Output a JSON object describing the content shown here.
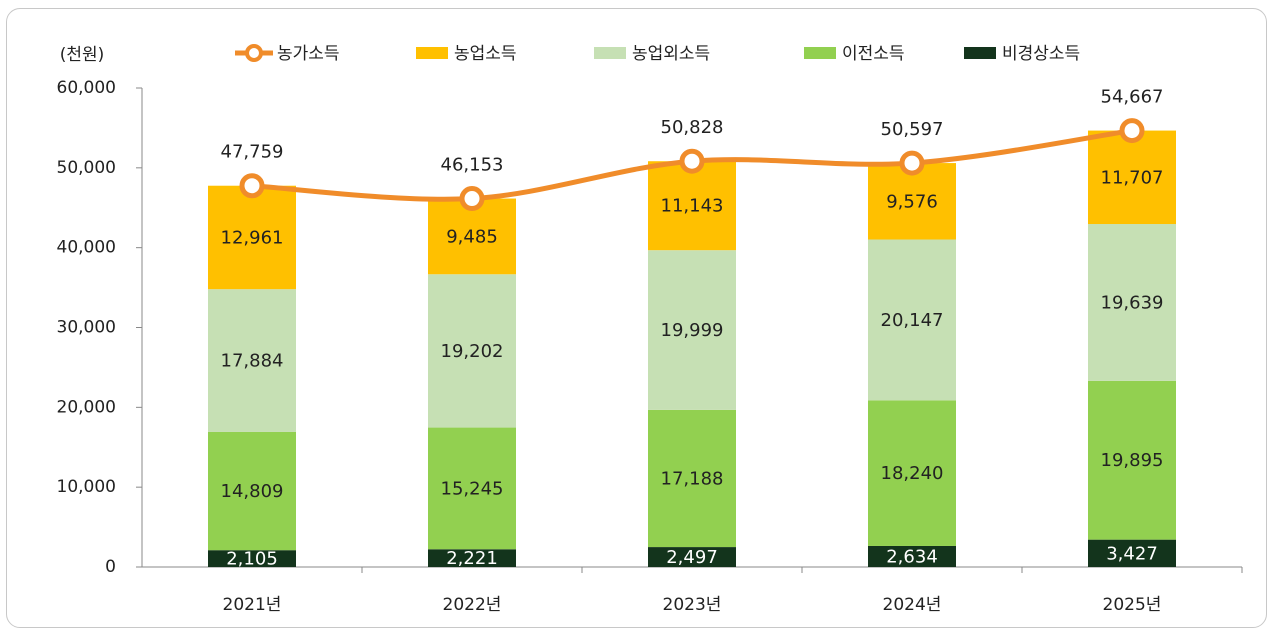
{
  "chart_data": {
    "type": "bar",
    "stacked": true,
    "y_unit_label": "(천원)",
    "categories": [
      "2021년",
      "2022년",
      "2023년",
      "2024년",
      "2025년"
    ],
    "series": [
      {
        "name": "농가소득",
        "type": "line",
        "color": "#f08c2a",
        "values": [
          47759,
          46153,
          50828,
          50597,
          54667
        ],
        "value_labels": [
          "47,759",
          "46,153",
          "50,828",
          "50,597",
          "54,667"
        ]
      },
      {
        "name": "농업소득",
        "color": "#ffc000",
        "values": [
          12961,
          9485,
          11143,
          9576,
          11707
        ],
        "value_labels": [
          "12,961",
          "9,485",
          "11,143",
          "9,576",
          "11,707"
        ]
      },
      {
        "name": "농업외소득",
        "color": "#c6e0b4",
        "values": [
          17884,
          19202,
          19999,
          20147,
          19639
        ],
        "value_labels": [
          "17,884",
          "19,202",
          "19,999",
          "20,147",
          "19,639"
        ]
      },
      {
        "name": "이전소득",
        "color": "#92d050",
        "values": [
          14809,
          15245,
          17188,
          18240,
          19895
        ],
        "value_labels": [
          "14,809",
          "15,245",
          "17,188",
          "18,240",
          "19,895"
        ]
      },
      {
        "name": "비경상소득",
        "color": "#13341c",
        "values": [
          2105,
          2221,
          2497,
          2634,
          3427
        ],
        "value_labels": [
          "2,105",
          "2,221",
          "2,497",
          "2,634",
          "3,427"
        ]
      }
    ],
    "ylim": [
      0,
      60000
    ],
    "yticks": [
      0,
      {
        "value": 10000,
        "label": "10,000"
      },
      {
        "value": 20000,
        "label": "20,000"
      },
      {
        "value": 30000,
        "label": "30,000"
      },
      {
        "value": 40000,
        "label": "40,000"
      },
      {
        "value": 50000,
        "label": "50,000"
      },
      {
        "value": 60000,
        "label": "60,000"
      }
    ],
    "grid": false
  }
}
